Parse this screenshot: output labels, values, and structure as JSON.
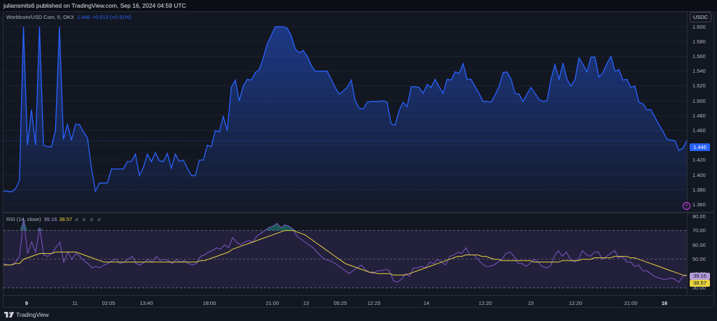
{
  "header": {
    "published_by": "juliansmits6 published on TradingView.com, Sep 16, 2024 04:59 UTC"
  },
  "legend": {
    "symbol": "Worldcoin/USD Coin, 5, OKX",
    "last": "1.446",
    "change": "+0.013 (+0.91%)"
  },
  "rsi_legend": {
    "label": "RSI (14, close)",
    "rsi_value": "39.16",
    "ma_value": "38.57",
    "icons": "⌀ ⌀ ⌀ ⌀"
  },
  "price_axis": {
    "currency": "USDC",
    "current_price_label": "1.446"
  },
  "rsi_axis": {
    "rsi_tag": "39.16",
    "ma_tag": "38.57"
  },
  "footer": {
    "brand": "TradingView"
  },
  "colors": {
    "background": "#131722",
    "price_line": "#2962ff",
    "rsi_line": "#7e57c2",
    "rsi_ma": "#e8d33f",
    "band_fill": "#2a2446"
  },
  "chart_data": [
    {
      "type": "area",
      "title": "Worldcoin/USD Coin, 5, OKX",
      "ylim": [
        1.35,
        1.62
      ],
      "yticks": [
        "1.600",
        "1.580",
        "1.560",
        "1.540",
        "1.520",
        "1.500",
        "1.480",
        "1.460",
        "1.440",
        "1.420",
        "1.400",
        "1.380",
        "1.360"
      ],
      "xticks": [
        "9",
        "11",
        "02:05",
        "13:40",
        "18:00",
        "21:00",
        "13",
        "05:25",
        "12:25",
        "14",
        "12:20",
        "15",
        "12:20",
        "21:00",
        "16"
      ],
      "y_values": [
        1.378,
        1.378,
        1.377,
        1.381,
        1.393,
        1.6,
        1.44,
        1.488,
        1.44,
        1.6,
        1.44,
        1.438,
        1.438,
        1.46,
        1.6,
        1.448,
        1.468,
        1.447,
        1.468,
        1.468,
        1.458,
        1.45,
        1.409,
        1.378,
        1.389,
        1.389,
        1.389,
        1.408,
        1.408,
        1.408,
        1.408,
        1.418,
        1.418,
        1.428,
        1.399,
        1.41,
        1.428,
        1.418,
        1.43,
        1.419,
        1.418,
        1.429,
        1.409,
        1.428,
        1.418,
        1.42,
        1.409,
        1.399,
        1.399,
        1.42,
        1.42,
        1.44,
        1.438,
        1.46,
        1.458,
        1.479,
        1.46,
        1.518,
        1.528,
        1.5,
        1.52,
        1.529,
        1.528,
        1.538,
        1.542,
        1.558,
        1.577,
        1.588,
        1.6,
        1.6,
        1.6,
        1.598,
        1.588,
        1.57,
        1.565,
        1.568,
        1.56,
        1.548,
        1.54,
        1.54,
        1.54,
        1.54,
        1.529,
        1.518,
        1.509,
        1.513,
        1.518,
        1.528,
        1.5,
        1.49,
        1.489,
        1.498,
        1.499,
        1.499,
        1.499,
        1.5,
        1.498,
        1.469,
        1.467,
        1.487,
        1.498,
        1.492,
        1.519,
        1.519,
        1.518,
        1.51,
        1.522,
        1.518,
        1.529,
        1.519,
        1.51,
        1.529,
        1.528,
        1.539,
        1.537,
        1.55,
        1.529,
        1.529,
        1.519,
        1.51,
        1.499,
        1.499,
        1.498,
        1.508,
        1.519,
        1.538,
        1.539,
        1.529,
        1.51,
        1.509,
        1.499,
        1.509,
        1.518,
        1.51,
        1.502,
        1.499,
        1.5,
        1.529,
        1.549,
        1.529,
        1.551,
        1.529,
        1.52,
        1.529,
        1.558,
        1.549,
        1.539,
        1.559,
        1.559,
        1.532,
        1.538,
        1.55,
        1.56,
        1.54,
        1.542,
        1.528,
        1.529,
        1.518,
        1.52,
        1.498,
        1.496,
        1.488,
        1.488,
        1.478,
        1.468,
        1.459,
        1.448,
        1.447,
        1.446,
        1.433,
        1.436,
        1.446
      ]
    },
    {
      "type": "line",
      "title": "RSI (14, close)",
      "ylim": [
        25,
        82
      ],
      "yticks": [
        "80.00",
        "70.00",
        "60.00",
        "50.00",
        "40.00",
        "30.00"
      ],
      "bands": [
        70,
        50,
        30
      ],
      "series": [
        {
          "name": "RSI",
          "values": [
            47,
            46,
            46,
            48,
            52,
            78,
            54,
            62,
            55,
            72,
            53,
            52,
            54,
            58,
            62,
            48,
            55,
            50,
            54,
            52,
            49,
            47,
            44,
            45,
            44,
            46,
            47,
            49,
            50,
            47,
            48,
            50,
            52,
            47,
            46,
            48,
            50,
            48,
            52,
            49,
            50,
            49,
            47,
            50,
            48,
            49,
            47,
            46,
            47,
            52,
            53,
            55,
            56,
            58,
            57,
            60,
            58,
            65,
            62,
            60,
            62,
            63,
            62,
            66,
            68,
            70,
            72,
            73,
            75,
            72,
            74,
            73,
            71,
            66,
            64,
            62,
            60,
            58,
            55,
            52,
            50,
            49,
            48,
            46,
            44,
            42,
            40,
            42,
            44,
            46,
            43,
            41,
            40,
            42,
            42,
            43,
            42,
            35,
            34,
            36,
            40,
            38,
            44,
            44,
            45,
            44,
            48,
            47,
            50,
            48,
            46,
            52,
            53,
            55,
            54,
            58,
            53,
            53,
            50,
            47,
            45,
            45,
            46,
            48,
            50,
            54,
            55,
            52,
            47,
            47,
            45,
            47,
            50,
            48,
            45,
            44,
            45,
            52,
            56,
            52,
            55,
            50,
            48,
            50,
            56,
            53,
            52,
            55,
            55,
            50,
            52,
            54,
            56,
            51,
            52,
            48,
            48,
            45,
            46,
            42,
            42,
            40,
            38,
            37,
            36,
            36,
            37,
            36,
            34,
            38,
            39
          ]
        },
        {
          "name": "MA",
          "values": [
            46,
            46,
            46,
            47,
            47,
            50,
            51,
            52,
            53,
            54,
            54,
            54,
            54,
            55,
            55,
            55,
            55,
            55,
            55,
            54,
            53,
            52,
            51,
            50,
            49,
            48,
            48,
            48,
            48,
            48,
            48,
            48,
            48,
            48,
            48,
            48,
            48,
            48,
            48,
            48,
            48,
            48,
            48,
            48,
            48,
            48,
            48,
            48,
            48,
            49,
            49,
            50,
            51,
            52,
            53,
            54,
            55,
            57,
            58,
            59,
            60,
            61,
            62,
            63,
            64,
            65,
            66,
            67,
            68,
            69,
            70,
            70,
            70,
            69,
            68,
            67,
            65,
            63,
            61,
            59,
            57,
            55,
            53,
            51,
            49,
            47,
            46,
            45,
            44,
            43,
            42,
            41,
            41,
            40,
            40,
            40,
            40,
            39,
            39,
            39,
            39,
            40,
            41,
            42,
            43,
            44,
            45,
            46,
            47,
            48,
            49,
            50,
            51,
            52,
            52,
            53,
            53,
            53,
            53,
            52,
            52,
            51,
            50,
            50,
            49,
            49,
            49,
            49,
            49,
            49,
            49,
            49,
            48,
            48,
            48,
            48,
            48,
            48,
            48,
            49,
            49,
            49,
            49,
            49,
            50,
            50,
            50,
            51,
            51,
            51,
            51,
            51,
            52,
            52,
            52,
            52,
            51,
            51,
            50,
            49,
            48,
            47,
            46,
            45,
            44,
            43,
            42,
            41,
            40,
            39,
            38.6
          ]
        }
      ]
    }
  ]
}
